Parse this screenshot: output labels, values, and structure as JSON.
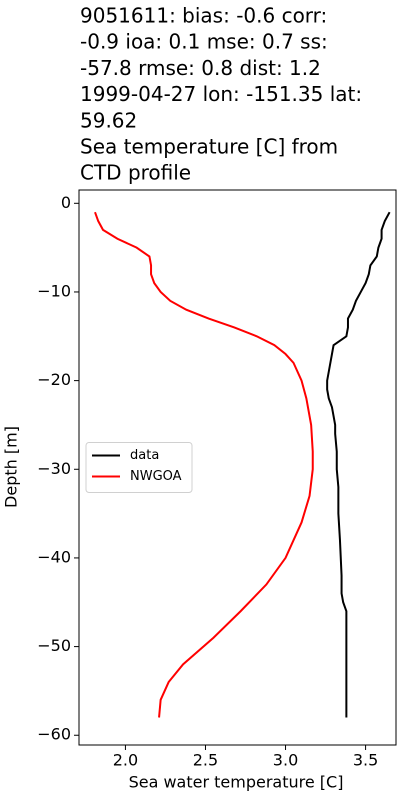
{
  "chart_data": {
    "type": "line",
    "title": [
      "9051611: bias: -0.6  corr:",
      "-0.9  ioa: 0.1  mse: 0.7  ss:",
      "-57.8  rmse: 0.8  dist: 1.2",
      "1999-04-27 lon: -151.35 lat:",
      "59.62",
      "Sea temperature [C] from",
      "CTD profile"
    ],
    "xlabel": "Sea water temperature [C]",
    "ylabel": "Depth [m]",
    "xlim": [
      1.71,
      3.69
    ],
    "ylim": [
      -61.1,
      1.5
    ],
    "xticks": [
      {
        "value": 2,
        "label": "2.0"
      },
      2.5,
      {
        "value": 3,
        "label": "3.0"
      },
      3.5
    ],
    "yticks": [
      0,
      {
        "value": -10,
        "label": "−10"
      },
      {
        "value": -20,
        "label": "−20"
      },
      {
        "value": -30,
        "label": "−30"
      },
      {
        "value": -40,
        "label": "−40"
      },
      {
        "value": -50,
        "label": "−50"
      },
      {
        "value": -60,
        "label": "−60"
      }
    ],
    "legend": "center left",
    "series": [
      {
        "name": "data",
        "color": "#000000",
        "x": [
          3.65,
          3.62,
          3.6,
          3.6,
          3.58,
          3.57,
          3.53,
          3.52,
          3.5,
          3.47,
          3.44,
          3.42,
          3.39,
          3.39,
          3.38,
          3.3,
          3.29,
          3.28,
          3.27,
          3.26,
          3.26,
          3.27,
          3.29,
          3.3,
          3.31,
          3.31,
          3.32,
          3.32,
          3.33,
          3.33,
          3.34,
          3.35,
          3.35,
          3.36,
          3.38,
          3.38,
          3.38,
          3.38,
          3.38
        ],
        "values": [
          -1,
          -2,
          -3,
          -4,
          -5,
          -6,
          -7,
          -8,
          -9,
          -10,
          -11,
          -12,
          -13,
          -14,
          -15,
          -16,
          -17,
          -18,
          -19,
          -20,
          -21,
          -22,
          -23,
          -24,
          -25,
          -26,
          -28,
          -30,
          -32,
          -35,
          -38,
          -42,
          -44,
          -45,
          -46,
          -48,
          -52,
          -55,
          -58
        ]
      },
      {
        "name": "NWGOA",
        "color": "#ff0000",
        "x": [
          1.81,
          1.83,
          1.86,
          1.95,
          2.07,
          2.15,
          2.16,
          2.16,
          2.18,
          2.22,
          2.28,
          2.38,
          2.52,
          2.68,
          2.82,
          2.93,
          3.0,
          3.05,
          3.1,
          3.13,
          3.16,
          3.17,
          3.17,
          3.15,
          3.1,
          3.0,
          2.88,
          2.72,
          2.55,
          2.36,
          2.27,
          2.22,
          2.21
        ],
        "values": [
          -1,
          -2,
          -3,
          -4,
          -5,
          -6,
          -7,
          -8,
          -9,
          -10,
          -11,
          -12,
          -13,
          -14,
          -15,
          -16,
          -17,
          -18,
          -20,
          -22,
          -25,
          -28,
          -30,
          -33,
          -36,
          -40,
          -43,
          -46,
          -49,
          -52,
          -54,
          -56,
          -58
        ]
      }
    ]
  }
}
